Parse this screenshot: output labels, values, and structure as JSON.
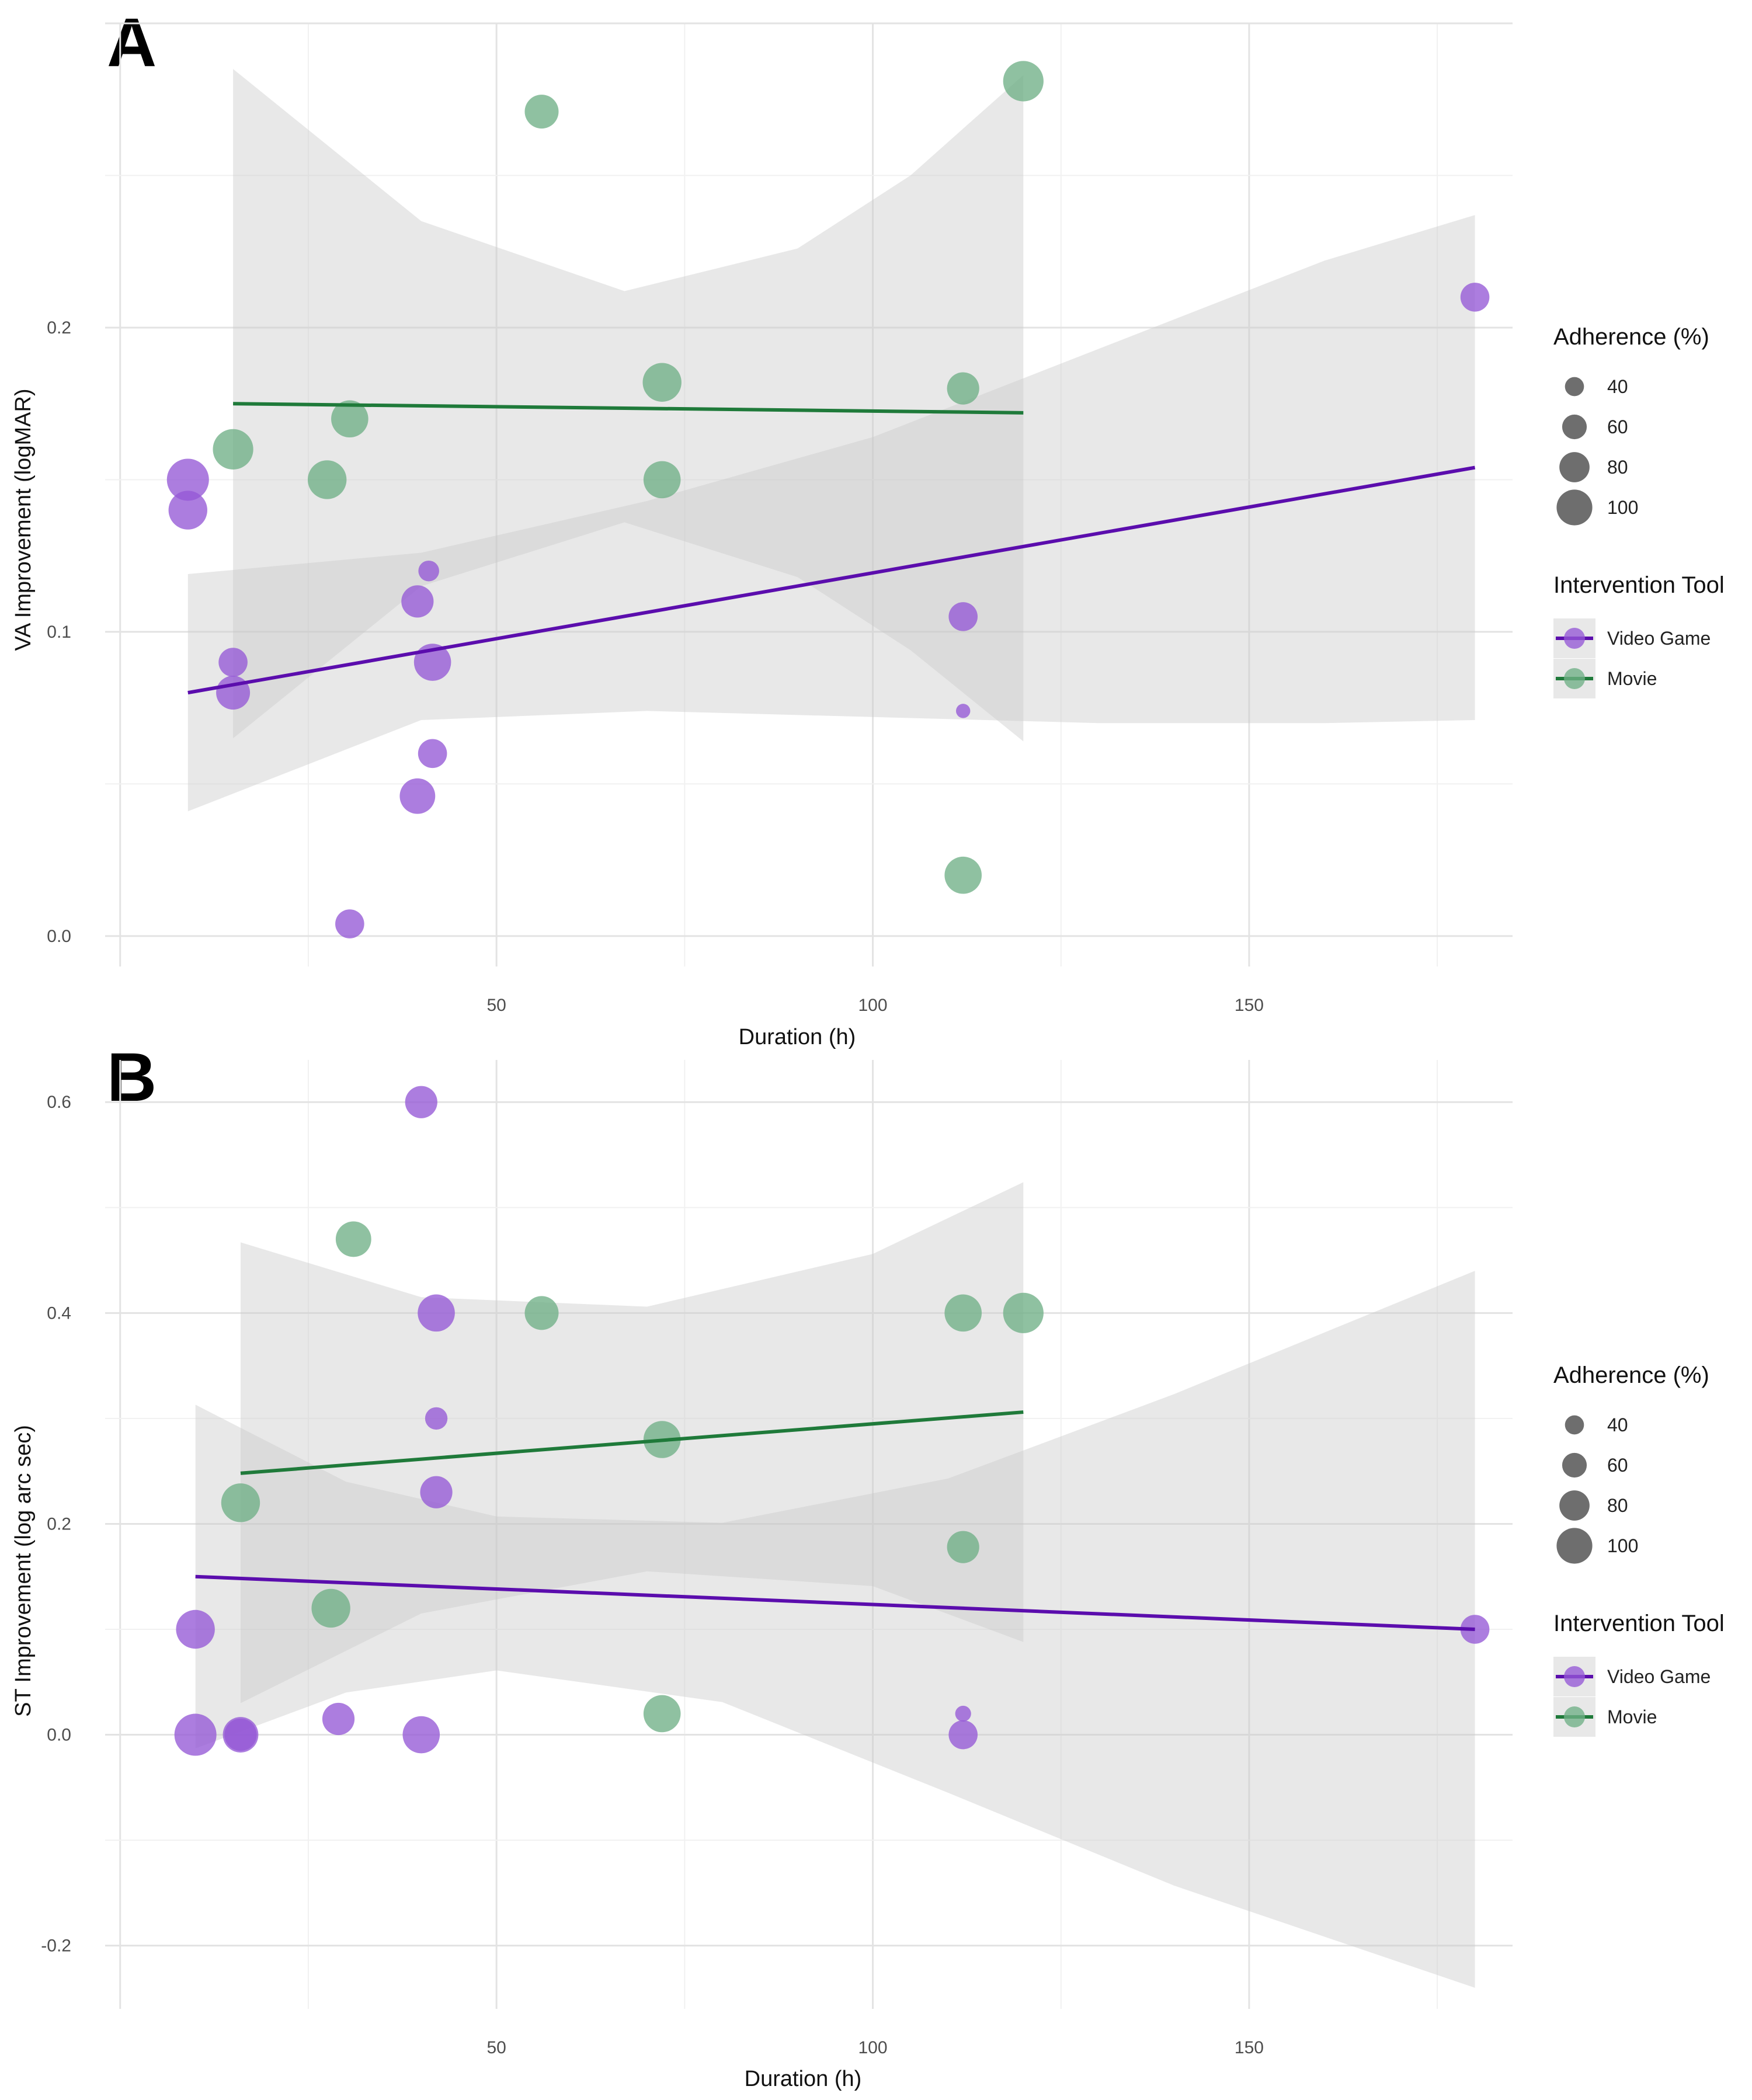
{
  "colors": {
    "video_game": "#5B0DAD",
    "video_game_point": "#9558D6",
    "movie": "#1F7A3A",
    "movie_point": "#6FAF86",
    "ribbon": "#C8C8C8",
    "legend_point": "#555555"
  },
  "legends": {
    "adherence_title": "Adherence (%)",
    "adherence_levels": [
      "40",
      "60",
      "80",
      "100"
    ],
    "tool_title": "Intervention Tool",
    "tool_items": [
      {
        "label": "Video Game",
        "series": "video_game"
      },
      {
        "label": "Movie",
        "series": "movie"
      }
    ]
  },
  "chart_data": [
    {
      "type": "scatter",
      "panel_label": "A",
      "xlabel": "Duration (h)",
      "ylabel": "VA Improvement (logMAR)",
      "xlim": [
        -2,
        185
      ],
      "ylim": [
        -0.01,
        0.3
      ],
      "x_ticks": [
        50,
        100,
        150
      ],
      "y_ticks": [
        0.0,
        0.1,
        0.2
      ],
      "y_tick_labels": [
        "0.0",
        "0.1",
        "0.2"
      ],
      "grid": true,
      "series": [
        {
          "name": "Video Game",
          "key": "video_game",
          "points": [
            {
              "x": 9,
              "y": 0.15,
              "adherence": 100
            },
            {
              "x": 9,
              "y": 0.14,
              "adherence": 90
            },
            {
              "x": 15,
              "y": 0.09,
              "adherence": 60
            },
            {
              "x": 15,
              "y": 0.08,
              "adherence": 75
            },
            {
              "x": 30.5,
              "y": 0.004,
              "adherence": 60
            },
            {
              "x": 39.5,
              "y": 0.11,
              "adherence": 70
            },
            {
              "x": 39.5,
              "y": 0.046,
              "adherence": 80
            },
            {
              "x": 41,
              "y": 0.12,
              "adherence": 35
            },
            {
              "x": 41.5,
              "y": 0.09,
              "adherence": 85
            },
            {
              "x": 41.5,
              "y": 0.06,
              "adherence": 60
            },
            {
              "x": 112,
              "y": 0.105,
              "adherence": 60
            },
            {
              "x": 112,
              "y": 0.074,
              "adherence": 15
            },
            {
              "x": 180,
              "y": 0.21,
              "adherence": 60
            }
          ],
          "fit": {
            "x": [
              9,
              180
            ],
            "y": [
              0.08,
              0.154
            ]
          },
          "ci_upper": [
            [
              9,
              0.119
            ],
            [
              40,
              0.126
            ],
            [
              70,
              0.143
            ],
            [
              100,
              0.164
            ],
            [
              130,
              0.193
            ],
            [
              160,
              0.222
            ],
            [
              180,
              0.237
            ]
          ],
          "ci_lower": [
            [
              9,
              0.041
            ],
            [
              40,
              0.071
            ],
            [
              70,
              0.074
            ],
            [
              100,
              0.072
            ],
            [
              130,
              0.07
            ],
            [
              160,
              0.07
            ],
            [
              180,
              0.071
            ]
          ]
        },
        {
          "name": "Movie",
          "key": "movie",
          "points": [
            {
              "x": 15,
              "y": 0.16,
              "adherence": 95
            },
            {
              "x": 27.5,
              "y": 0.15,
              "adherence": 90
            },
            {
              "x": 30.5,
              "y": 0.17,
              "adherence": 85
            },
            {
              "x": 56,
              "y": 0.271,
              "adherence": 75
            },
            {
              "x": 72,
              "y": 0.182,
              "adherence": 90
            },
            {
              "x": 72,
              "y": 0.15,
              "adherence": 85
            },
            {
              "x": 112,
              "y": 0.18,
              "adherence": 70
            },
            {
              "x": 112,
              "y": 0.02,
              "adherence": 85
            },
            {
              "x": 120,
              "y": 0.281,
              "adherence": 95
            }
          ],
          "fit": {
            "x": [
              15,
              120
            ],
            "y": [
              0.175,
              0.172
            ]
          },
          "ci_upper": [
            [
              15,
              0.285
            ],
            [
              40,
              0.235
            ],
            [
              67,
              0.212
            ],
            [
              90,
              0.226
            ],
            [
              105,
              0.25
            ],
            [
              120,
              0.283
            ]
          ],
          "ci_lower": [
            [
              15,
              0.065
            ],
            [
              40,
              0.115
            ],
            [
              67,
              0.136
            ],
            [
              90,
              0.118
            ],
            [
              105,
              0.094
            ],
            [
              120,
              0.064
            ]
          ]
        }
      ]
    },
    {
      "type": "scatter",
      "panel_label": "B",
      "xlabel": "Duration (h)",
      "ylabel": "ST Improvement (log arc sec)",
      "xlim": [
        -2,
        185
      ],
      "ylim": [
        -0.26,
        0.64
      ],
      "x_ticks": [
        50,
        100,
        150
      ],
      "y_ticks": [
        -0.2,
        0.0,
        0.2,
        0.4,
        0.6
      ],
      "y_tick_labels": [
        "-0.2",
        "0.0",
        "0.2",
        "0.4",
        "0.6"
      ],
      "grid": true,
      "series": [
        {
          "name": "Video Game",
          "key": "video_game",
          "points": [
            {
              "x": 10,
              "y": 0.1,
              "adherence": 90
            },
            {
              "x": 10,
              "y": 0.0,
              "adherence": 100
            },
            {
              "x": 16,
              "y": 0.0,
              "adherence": 80
            },
            {
              "x": 16,
              "y": 0.0,
              "adherence": 70
            },
            {
              "x": 29,
              "y": 0.015,
              "adherence": 70
            },
            {
              "x": 40,
              "y": 0.6,
              "adherence": 70
            },
            {
              "x": 40,
              "y": 0.0,
              "adherence": 85
            },
            {
              "x": 42,
              "y": 0.4,
              "adherence": 85
            },
            {
              "x": 42,
              "y": 0.3,
              "adherence": 40
            },
            {
              "x": 42,
              "y": 0.23,
              "adherence": 70
            },
            {
              "x": 112,
              "y": 0.02,
              "adherence": 20
            },
            {
              "x": 112,
              "y": 0.0,
              "adherence": 60
            },
            {
              "x": 180,
              "y": 0.1,
              "adherence": 60
            }
          ],
          "fit": {
            "x": [
              10,
              180
            ],
            "y": [
              0.15,
              0.1
            ]
          },
          "ci_upper": [
            [
              10,
              0.313
            ],
            [
              30,
              0.24
            ],
            [
              50,
              0.207
            ],
            [
              80,
              0.201
            ],
            [
              110,
              0.243
            ],
            [
              140,
              0.323
            ],
            [
              180,
              0.44
            ]
          ],
          "ci_lower": [
            [
              10,
              -0.013
            ],
            [
              30,
              0.04
            ],
            [
              50,
              0.061
            ],
            [
              80,
              0.031
            ],
            [
              110,
              -0.055
            ],
            [
              140,
              -0.143
            ],
            [
              180,
              -0.24
            ]
          ]
        },
        {
          "name": "Movie",
          "key": "movie",
          "points": [
            {
              "x": 16,
              "y": 0.22,
              "adherence": 90
            },
            {
              "x": 28,
              "y": 0.12,
              "adherence": 90
            },
            {
              "x": 31,
              "y": 0.47,
              "adherence": 80
            },
            {
              "x": 56,
              "y": 0.4,
              "adherence": 75
            },
            {
              "x": 72,
              "y": 0.28,
              "adherence": 85
            },
            {
              "x": 72,
              "y": 0.02,
              "adherence": 85
            },
            {
              "x": 112,
              "y": 0.4,
              "adherence": 85
            },
            {
              "x": 112,
              "y": 0.178,
              "adherence": 70
            },
            {
              "x": 120,
              "y": 0.4,
              "adherence": 95
            }
          ],
          "fit": {
            "x": [
              16,
              120
            ],
            "y": [
              0.248,
              0.306
            ]
          },
          "ci_upper": [
            [
              16,
              0.467
            ],
            [
              40,
              0.415
            ],
            [
              70,
              0.406
            ],
            [
              100,
              0.456
            ],
            [
              120,
              0.524
            ]
          ],
          "ci_lower": [
            [
              16,
              0.03
            ],
            [
              40,
              0.115
            ],
            [
              70,
              0.155
            ],
            [
              100,
              0.141
            ],
            [
              120,
              0.088
            ]
          ]
        }
      ]
    }
  ]
}
